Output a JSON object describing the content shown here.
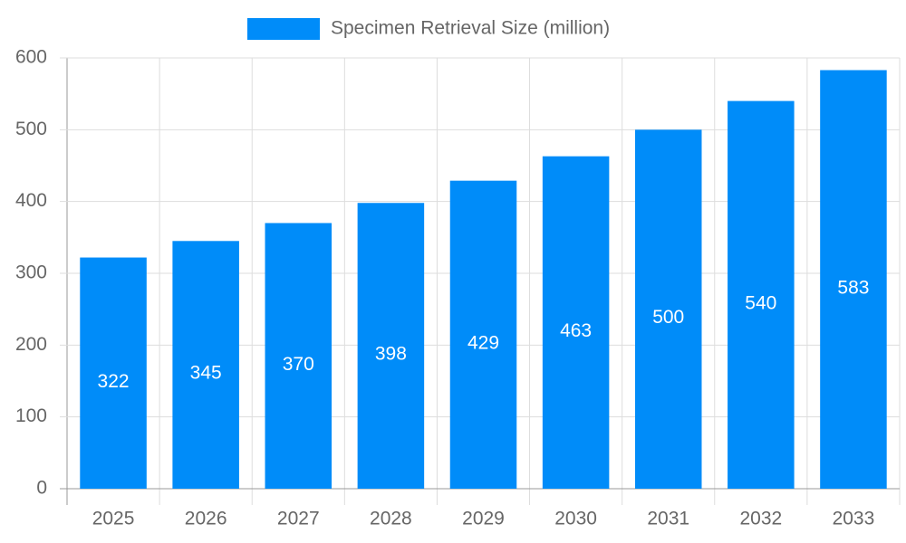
{
  "chart_data": {
    "type": "bar",
    "categories": [
      "2025",
      "2026",
      "2027",
      "2028",
      "2029",
      "2030",
      "2031",
      "2032",
      "2033"
    ],
    "series": [
      {
        "name": "Specimen Retrieval Size (million)",
        "color": "#008cf9",
        "values": [
          322,
          345,
          370,
          398,
          429,
          463,
          500,
          540,
          583
        ]
      }
    ],
    "ylim": [
      0,
      600
    ],
    "yticks": [
      0,
      100,
      200,
      300,
      400,
      500,
      600
    ],
    "grid": true,
    "legend": "top"
  }
}
